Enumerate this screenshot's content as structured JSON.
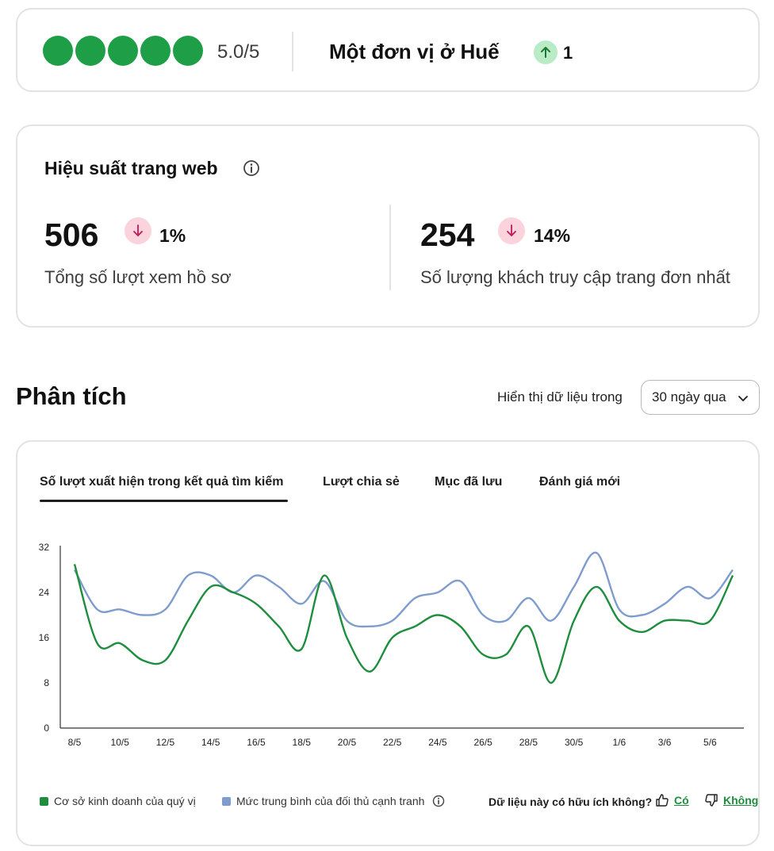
{
  "rating": {
    "stars_filled": 5,
    "score_text": "5.0/5",
    "rank_title": "Một đơn vị ở Huế",
    "rank_change": "1",
    "accent": "#1e9e46"
  },
  "website_performance": {
    "title": "Hiệu suất trang web",
    "info_icon": "info-icon",
    "metrics": [
      {
        "value": "506",
        "change": "1%",
        "direction": "down",
        "label": "Tổng số lượt xem hồ sơ"
      },
      {
        "value": "254",
        "change": "14%",
        "direction": "down",
        "label": "Số lượng khách truy cập trang đơn nhất"
      }
    ]
  },
  "analytics": {
    "title": "Phân tích",
    "range_label": "Hiển thị dữ liệu trong",
    "range_value": "30 ngày qua",
    "tabs": [
      {
        "label": "Số lượt xuất hiện trong kết quả tìm kiếm",
        "active": true
      },
      {
        "label": "Lượt chia sẻ",
        "active": false
      },
      {
        "label": "Mục đã lưu",
        "active": false
      },
      {
        "label": "Đánh giá mới",
        "active": false
      }
    ],
    "legend": {
      "business": "Cơ sở kinh doanh của quý vị",
      "competitors": "Mức trung bình của đối thủ cạnh tranh"
    },
    "feedback": {
      "question": "Dữ liệu này có hữu ích không?",
      "yes": "Có",
      "no": "Không"
    }
  },
  "chart_data": {
    "type": "line",
    "x_tick_labels": [
      "8/5",
      "10/5",
      "12/5",
      "14/5",
      "16/5",
      "18/5",
      "20/5",
      "22/5",
      "24/5",
      "26/5",
      "28/5",
      "30/5",
      "1/6",
      "3/6",
      "5/6"
    ],
    "y_ticks": [
      0,
      8,
      16,
      24,
      32
    ],
    "ylim": [
      0,
      32
    ],
    "x": [
      "8/5",
      "9/5",
      "10/5",
      "11/5",
      "12/5",
      "13/5",
      "14/5",
      "15/5",
      "16/5",
      "17/5",
      "18/5",
      "19/5",
      "20/5",
      "21/5",
      "22/5",
      "23/5",
      "24/5",
      "25/5",
      "26/5",
      "27/5",
      "28/5",
      "29/5",
      "30/5",
      "31/5",
      "1/6",
      "2/6",
      "3/6",
      "4/6",
      "5/6",
      "6/6"
    ],
    "series": [
      {
        "name": "Cơ sở kinh doanh của quý vị",
        "color": "#1e8e3e",
        "values": [
          29,
          15,
          15,
          12,
          12,
          19,
          25,
          24,
          22,
          18,
          14,
          27,
          16,
          10,
          16,
          18,
          20,
          18,
          13,
          13,
          18,
          8,
          19,
          25,
          19,
          17,
          19,
          19,
          19,
          27
        ]
      },
      {
        "name": "Mức trung bình của đối thủ cạnh tranh",
        "color": "#7f9ccf",
        "values": [
          28,
          21,
          21,
          20,
          21,
          27,
          27,
          24,
          27,
          25,
          22,
          26,
          19,
          18,
          19,
          23,
          24,
          26,
          20,
          19,
          23,
          19,
          25,
          31,
          21,
          20,
          22,
          25,
          23,
          28
        ]
      }
    ],
    "grid": false,
    "legend_position": "bottom-left"
  }
}
